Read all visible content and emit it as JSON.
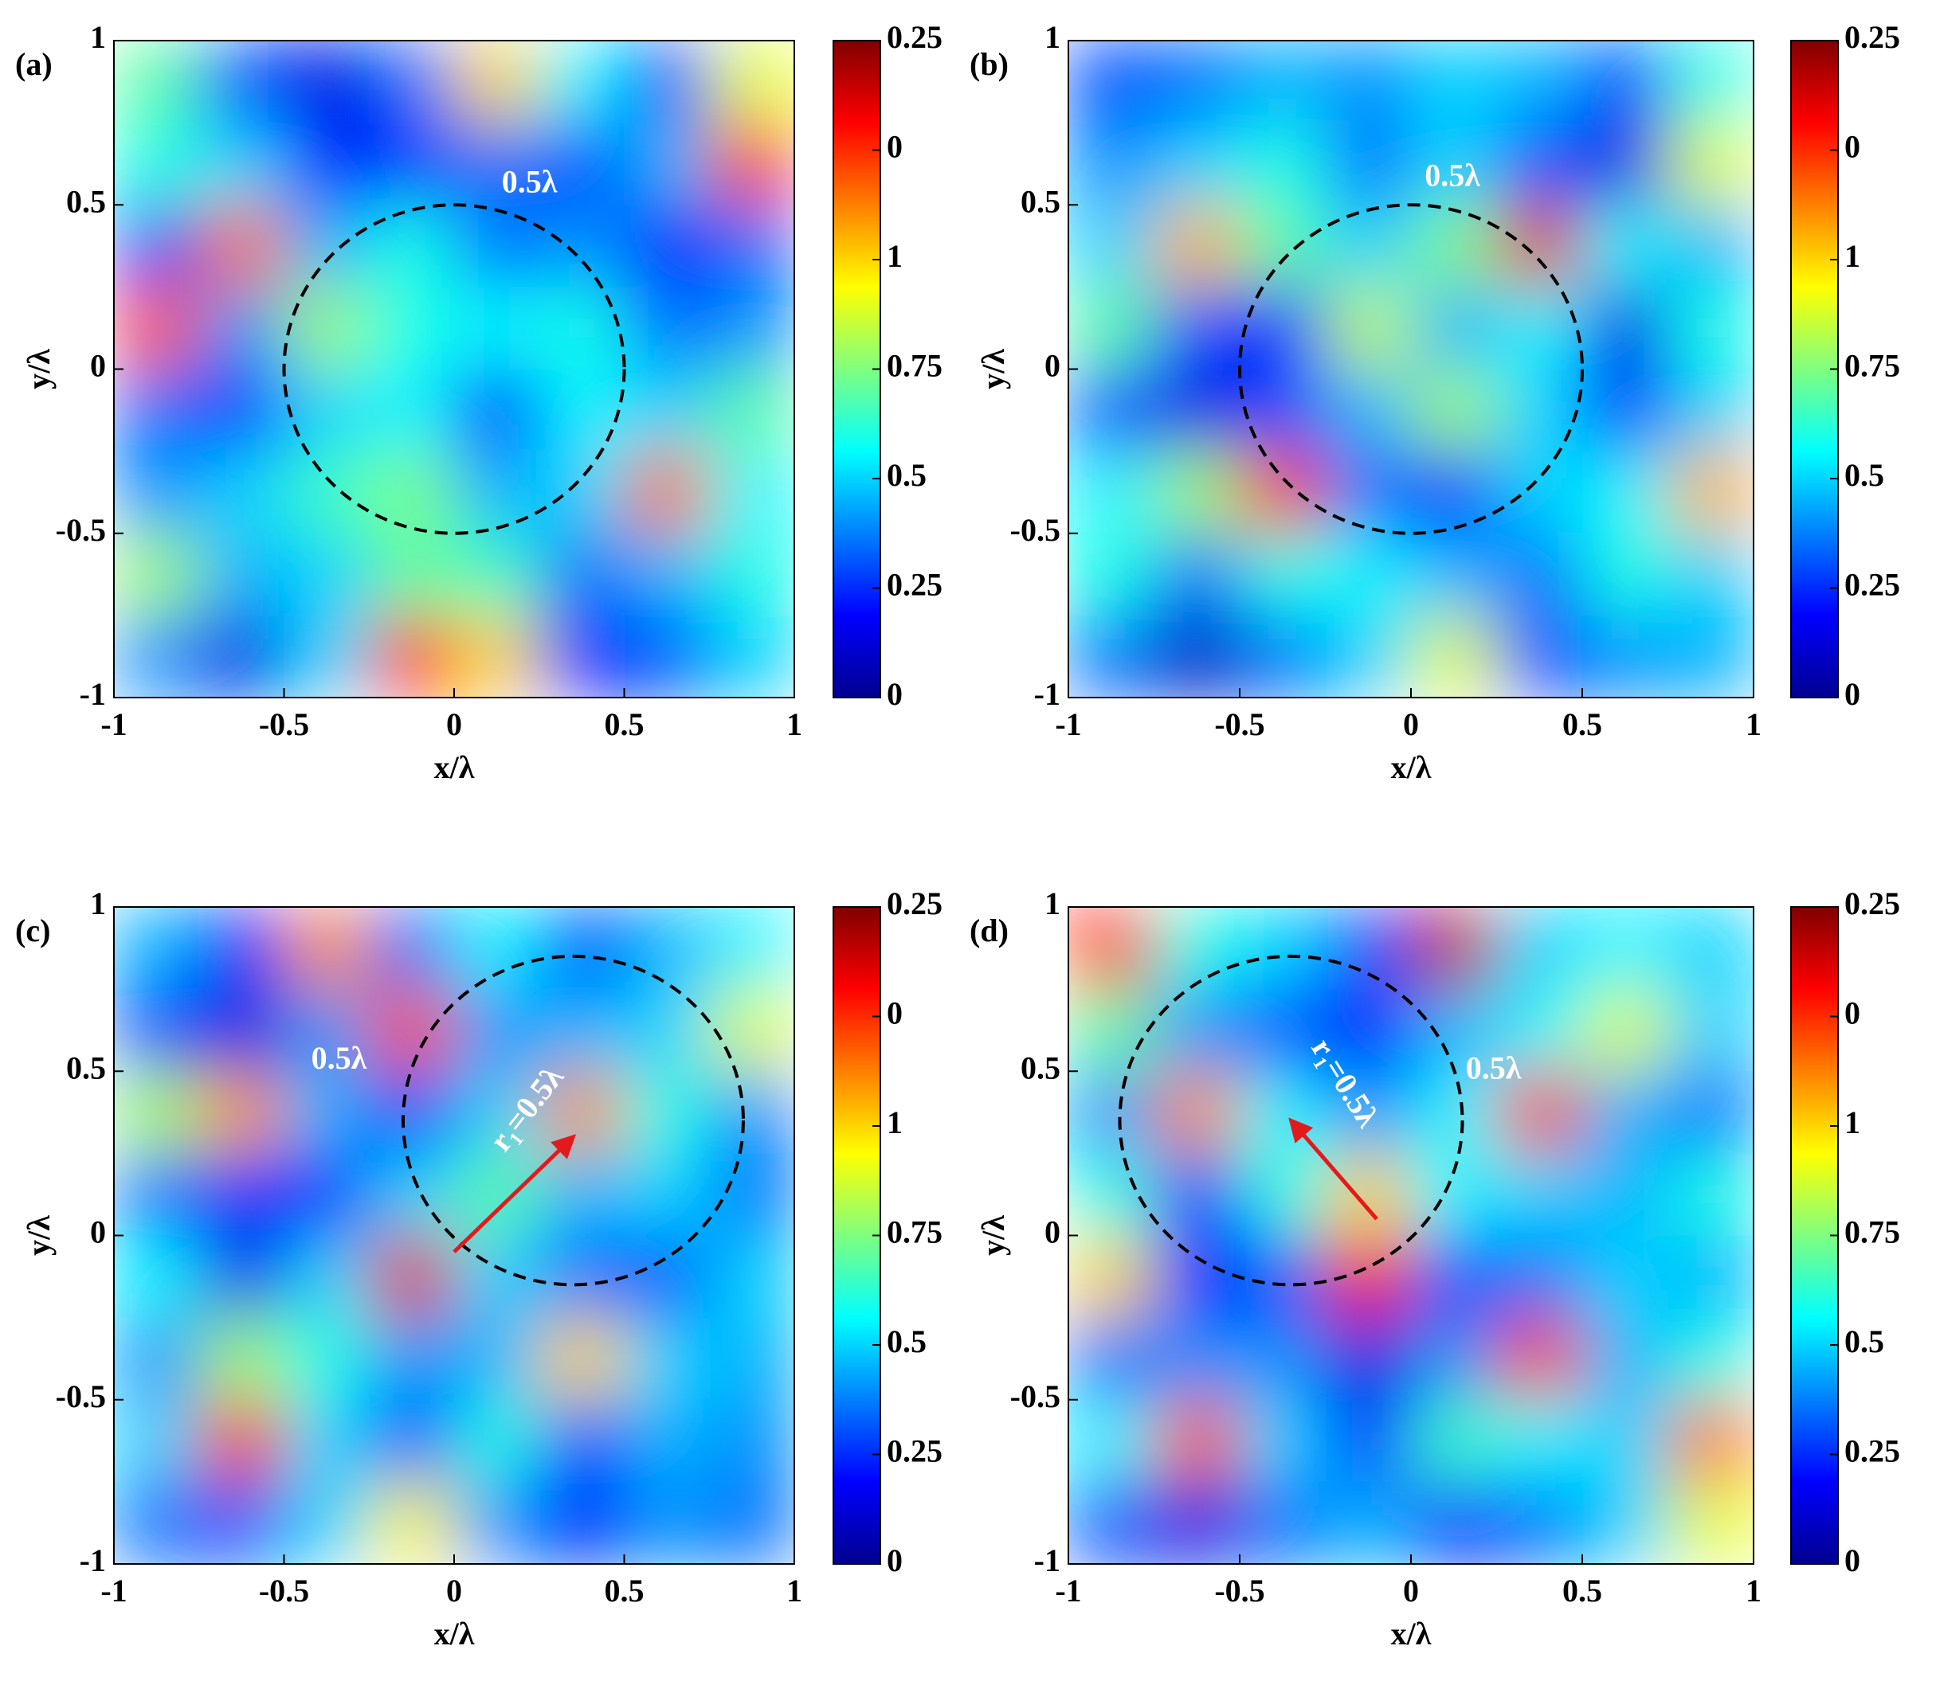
{
  "chart_data": [
    {
      "type": "contour",
      "panel_label": "(a)",
      "xlabel": "x/λ",
      "ylabel": "y/λ",
      "xlim": [
        -1,
        1
      ],
      "ylim": [
        -1,
        1
      ],
      "xticks": [
        -1,
        -0.5,
        0,
        0.5,
        1
      ],
      "yticks": [
        -1,
        -0.5,
        0,
        0.5,
        1
      ],
      "colorbar": {
        "clim": [
          0,
          1.5
        ],
        "ticks": [
          0,
          0.25,
          0.5,
          0.75,
          1,
          {
            "value": 1.25,
            "label": "0"
          },
          {
            "value": 1.5,
            "label": "0.25"
          }
        ]
      },
      "z": [
        [
          0.7,
          0.3,
          0.15,
          0.35,
          1.0,
          0.55,
          0.3,
          0.9
        ],
        [
          0.6,
          0.5,
          0.2,
          0.25,
          0.35,
          0.3,
          0.45,
          1.25
        ],
        [
          0.3,
          1.15,
          0.45,
          0.6,
          0.35,
          0.4,
          0.2,
          0.35
        ],
        [
          1.2,
          0.4,
          0.8,
          0.6,
          0.55,
          0.6,
          0.35,
          0.4
        ],
        [
          0.35,
          0.25,
          0.5,
          0.55,
          0.2,
          0.55,
          0.5,
          0.7
        ],
        [
          0.4,
          0.5,
          0.65,
          0.75,
          0.45,
          0.5,
          1.15,
          0.55
        ],
        [
          0.8,
          0.45,
          0.5,
          0.7,
          0.65,
          0.35,
          0.45,
          0.6
        ],
        [
          0.4,
          0.15,
          0.5,
          1.3,
          1.0,
          0.25,
          0.3,
          0.5
        ]
      ],
      "circle": {
        "center": [
          0,
          0
        ],
        "radius": 0.5
      },
      "annotations": [
        "0.5λ"
      ]
    },
    {
      "type": "contour",
      "panel_label": "(b)",
      "xlabel": "x/λ",
      "ylabel": "y/λ",
      "xlim": [
        -1,
        1
      ],
      "ylim": [
        -1,
        1
      ],
      "xticks": [
        -1,
        -0.5,
        0,
        0.5,
        1
      ],
      "yticks": [
        -1,
        -0.5,
        0,
        0.5,
        1
      ],
      "colorbar": {
        "clim": [
          0,
          1.5
        ],
        "ticks": [
          0,
          0.25,
          0.5,
          0.75,
          1,
          {
            "value": 1.25,
            "label": "0"
          },
          {
            "value": 1.5,
            "label": "0.25"
          }
        ]
      },
      "z": [
        [
          0.3,
          0.35,
          0.45,
          0.4,
          0.5,
          0.45,
          0.3,
          0.6
        ],
        [
          0.4,
          0.5,
          0.6,
          0.35,
          0.5,
          0.3,
          0.15,
          0.9
        ],
        [
          0.5,
          1.05,
          0.7,
          0.5,
          0.75,
          1.35,
          0.55,
          0.45
        ],
        [
          0.7,
          0.3,
          0.2,
          0.85,
          0.45,
          0.55,
          0.15,
          0.6
        ],
        [
          0.3,
          0.15,
          0.3,
          0.45,
          0.8,
          0.5,
          0.25,
          0.5
        ],
        [
          0.55,
          0.8,
          1.3,
          0.35,
          0.2,
          0.5,
          0.55,
          1.05
        ],
        [
          0.6,
          0.35,
          0.6,
          0.55,
          0.45,
          0.35,
          0.6,
          0.5
        ],
        [
          0.35,
          0.1,
          0.35,
          0.5,
          0.9,
          0.3,
          0.4,
          0.45
        ]
      ],
      "circle": {
        "center": [
          0,
          0
        ],
        "radius": 0.5
      },
      "annotations": [
        "0.5λ"
      ]
    },
    {
      "type": "contour",
      "panel_label": "(c)",
      "xlabel": "x/λ",
      "ylabel": "y/λ",
      "xlim": [
        -1,
        1
      ],
      "ylim": [
        -1,
        1
      ],
      "xticks": [
        -1,
        -0.5,
        0,
        0.5,
        1
      ],
      "yticks": [
        -1,
        -0.5,
        0,
        0.5,
        1
      ],
      "colorbar": {
        "clim": [
          0,
          1.5
        ],
        "ticks": [
          0,
          0.25,
          0.5,
          0.75,
          1,
          {
            "value": 1.25,
            "label": "0"
          },
          {
            "value": 1.5,
            "label": "0.25"
          }
        ]
      },
      "z": [
        [
          0.45,
          0.25,
          1.1,
          0.35,
          0.55,
          0.3,
          0.45,
          0.55
        ],
        [
          0.3,
          0.15,
          0.4,
          1.2,
          0.4,
          0.45,
          0.5,
          0.9
        ],
        [
          0.8,
          1.1,
          0.45,
          0.25,
          0.5,
          1.1,
          0.6,
          0.4
        ],
        [
          0.35,
          0.25,
          0.2,
          0.5,
          0.7,
          0.45,
          0.5,
          0.35
        ],
        [
          0.55,
          0.15,
          0.5,
          1.35,
          0.5,
          0.35,
          0.3,
          0.5
        ],
        [
          0.4,
          0.8,
          0.6,
          0.4,
          0.45,
          1.0,
          0.5,
          0.45
        ],
        [
          0.5,
          1.3,
          0.5,
          0.3,
          0.6,
          0.3,
          0.45,
          0.4
        ],
        [
          0.35,
          0.3,
          0.5,
          0.95,
          0.4,
          0.2,
          0.4,
          0.35
        ]
      ],
      "circle": {
        "center": [
          0.35,
          0.35
        ],
        "radius": 0.5
      },
      "arrow": {
        "from": [
          0,
          -0.05
        ],
        "to": [
          0.35,
          0.3
        ]
      },
      "annotations": [
        "0.5λ",
        "r₁=0.5λ"
      ]
    },
    {
      "type": "contour",
      "panel_label": "(d)",
      "xlabel": "x/λ",
      "ylabel": "y/λ",
      "xlim": [
        -1,
        1
      ],
      "ylim": [
        -1,
        1
      ],
      "xticks": [
        -1,
        -0.5,
        0,
        0.5,
        1
      ],
      "yticks": [
        -1,
        -0.5,
        0,
        0.5,
        1
      ],
      "colorbar": {
        "clim": [
          0,
          1.5
        ],
        "ticks": [
          0,
          0.25,
          0.5,
          0.75,
          1,
          {
            "value": 1.25,
            "label": "0"
          },
          {
            "value": 1.5,
            "label": "0.25"
          }
        ]
      },
      "z": [
        [
          1.3,
          0.6,
          0.5,
          0.3,
          1.4,
          0.5,
          0.55,
          0.5
        ],
        [
          0.7,
          0.4,
          0.3,
          0.2,
          0.45,
          0.55,
          0.9,
          0.5
        ],
        [
          0.4,
          1.1,
          0.55,
          0.4,
          0.55,
          1.25,
          0.45,
          0.35
        ],
        [
          0.6,
          0.25,
          0.6,
          1.0,
          0.55,
          0.5,
          0.45,
          0.6
        ],
        [
          1.0,
          0.2,
          0.3,
          1.3,
          0.3,
          0.35,
          0.5,
          0.45
        ],
        [
          0.35,
          0.4,
          0.4,
          0.15,
          0.4,
          1.25,
          0.45,
          0.6
        ],
        [
          0.55,
          1.2,
          0.5,
          0.2,
          0.65,
          0.55,
          0.5,
          1.15
        ],
        [
          0.3,
          0.15,
          0.35,
          0.45,
          0.2,
          0.35,
          0.5,
          0.9
        ]
      ],
      "circle": {
        "center": [
          -0.35,
          0.35
        ],
        "radius": 0.5
      },
      "arrow": {
        "from": [
          -0.1,
          0.05
        ],
        "to": [
          -0.35,
          0.35
        ]
      },
      "annotations": [
        "0.5λ",
        "r₁=0.5λ"
      ]
    }
  ]
}
